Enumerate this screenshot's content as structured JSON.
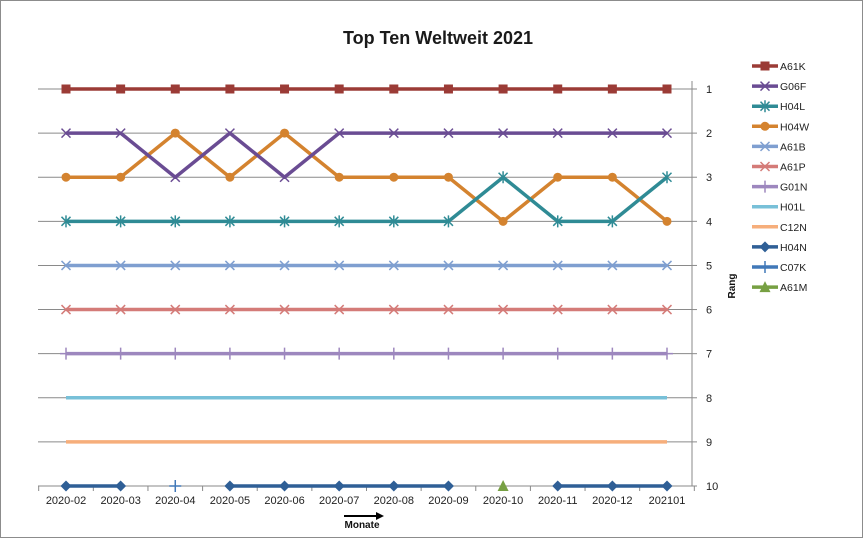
{
  "chart_data": {
    "type": "line",
    "title": "Top Ten  Weltweit 2021",
    "xlabel": "Monate",
    "ylabel": "Rang",
    "categories": [
      "2020-02",
      "2020-03",
      "2020-04",
      "2020-05",
      "2020-06",
      "2020-07",
      "2020-08",
      "2020-09",
      "2020-10",
      "2020-11",
      "2020-12",
      "202101"
    ],
    "ylim": [
      1,
      10
    ],
    "y_axis_side": "right",
    "y_reversed": true,
    "y_ticks": [
      "1",
      "2",
      "3",
      "4",
      "5",
      "6",
      "7",
      "8",
      "9",
      "10"
    ],
    "grid": "horizontal",
    "legend_position": "right",
    "series": [
      {
        "name": "A61K",
        "color": "#9b3b36",
        "marker": "square",
        "values": [
          1,
          1,
          1,
          1,
          1,
          1,
          1,
          1,
          1,
          1,
          1,
          1
        ]
      },
      {
        "name": "G06F",
        "color": "#6a4c93",
        "marker": "x",
        "values": [
          2,
          2,
          3,
          2,
          3,
          2,
          2,
          2,
          2,
          2,
          2,
          2
        ]
      },
      {
        "name": "H04L",
        "color": "#2f8b95",
        "marker": "asterisk",
        "values": [
          4,
          4,
          4,
          4,
          4,
          4,
          4,
          4,
          3,
          4,
          4,
          3
        ]
      },
      {
        "name": "H04W",
        "color": "#d4832f",
        "marker": "circle",
        "values": [
          3,
          3,
          2,
          3,
          2,
          3,
          3,
          3,
          4,
          3,
          3,
          4
        ]
      },
      {
        "name": "A61B",
        "color": "#7f9fd0",
        "marker": "x",
        "values": [
          5,
          5,
          5,
          5,
          5,
          5,
          5,
          5,
          5,
          5,
          5,
          5
        ]
      },
      {
        "name": "A61P",
        "color": "#d47b78",
        "marker": "x",
        "values": [
          6,
          6,
          6,
          6,
          6,
          6,
          6,
          6,
          6,
          6,
          6,
          6
        ]
      },
      {
        "name": "G01N",
        "color": "#9d87be",
        "marker": "plus",
        "values": [
          7,
          7,
          7,
          7,
          7,
          7,
          7,
          7,
          7,
          7,
          7,
          7
        ]
      },
      {
        "name": "H01L",
        "color": "#78c0d8",
        "marker": "none",
        "values": [
          8,
          8,
          8,
          8,
          8,
          8,
          8,
          8,
          8,
          8,
          8,
          8
        ]
      },
      {
        "name": "C12N",
        "color": "#f6ae7b",
        "marker": "none",
        "values": [
          9,
          9,
          9,
          9,
          9,
          9,
          9,
          9,
          9,
          9,
          9,
          9
        ]
      },
      {
        "name": "H04N",
        "color": "#2f5f96",
        "marker": "diamond",
        "values": [
          10,
          10,
          null,
          10,
          10,
          10,
          10,
          10,
          null,
          10,
          10,
          10
        ]
      },
      {
        "name": "C07K",
        "color": "#4178b8",
        "marker": "plus",
        "values": [
          null,
          null,
          10,
          null,
          null,
          null,
          null,
          null,
          null,
          null,
          null,
          null
        ]
      },
      {
        "name": "A61M",
        "color": "#77a043",
        "marker": "triangle",
        "values": [
          null,
          null,
          null,
          null,
          null,
          null,
          null,
          null,
          10,
          null,
          null,
          null
        ]
      }
    ]
  }
}
